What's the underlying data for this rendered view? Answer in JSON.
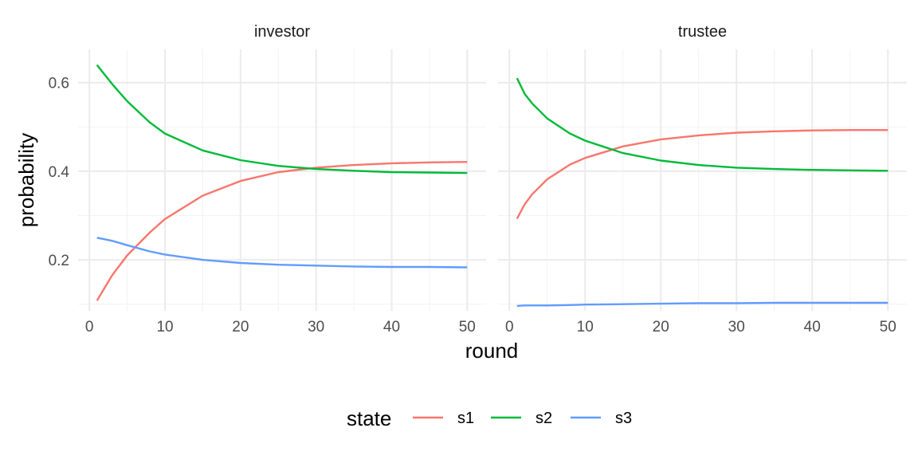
{
  "chart_data": {
    "type": "line",
    "xlabel": "round",
    "ylabel": "probability",
    "xlim": [
      1,
      50
    ],
    "ylim": [
      0.09,
      0.66
    ],
    "x_ticks": [
      0,
      10,
      20,
      30,
      40,
      50
    ],
    "y_ticks": [
      0.2,
      0.4,
      0.6
    ],
    "grid": true,
    "legend": {
      "title": "state",
      "position": "bottom",
      "entries": [
        "s1",
        "s2",
        "s3"
      ]
    },
    "colors": {
      "s1": "#F8766D",
      "s2": "#00BA38",
      "s3": "#619CFF"
    },
    "panels": [
      {
        "title": "investor",
        "series": [
          {
            "name": "s1",
            "x": [
              1,
              3,
              5,
              8,
              10,
              15,
              20,
              25,
              30,
              35,
              40,
              45,
              50
            ],
            "values": [
              0.108,
              0.165,
              0.21,
              0.262,
              0.292,
              0.345,
              0.378,
              0.398,
              0.408,
              0.414,
              0.418,
              0.42,
              0.421
            ]
          },
          {
            "name": "s2",
            "x": [
              1,
              3,
              5,
              8,
              10,
              15,
              20,
              25,
              30,
              35,
              40,
              45,
              50
            ],
            "values": [
              0.64,
              0.597,
              0.558,
              0.51,
              0.485,
              0.447,
              0.425,
              0.412,
              0.405,
              0.401,
              0.398,
              0.397,
              0.396
            ]
          },
          {
            "name": "s3",
            "x": [
              1,
              3,
              5,
              8,
              10,
              15,
              20,
              25,
              30,
              35,
              40,
              45,
              50
            ],
            "values": [
              0.25,
              0.243,
              0.233,
              0.219,
              0.212,
              0.2,
              0.193,
              0.189,
              0.187,
              0.185,
              0.184,
              0.184,
              0.183
            ]
          }
        ]
      },
      {
        "title": "trustee",
        "series": [
          {
            "name": "s1",
            "x": [
              1,
              2,
              3,
              5,
              8,
              10,
              15,
              20,
              25,
              30,
              35,
              40,
              45,
              50
            ],
            "values": [
              0.293,
              0.325,
              0.348,
              0.382,
              0.415,
              0.43,
              0.456,
              0.472,
              0.481,
              0.487,
              0.49,
              0.492,
              0.493,
              0.493
            ]
          },
          {
            "name": "s2",
            "x": [
              1,
              2,
              3,
              5,
              8,
              10,
              15,
              20,
              25,
              30,
              35,
              40,
              45,
              50
            ],
            "values": [
              0.61,
              0.575,
              0.553,
              0.519,
              0.485,
              0.469,
              0.441,
              0.424,
              0.414,
              0.408,
              0.405,
              0.403,
              0.402,
              0.401
            ]
          },
          {
            "name": "s3",
            "x": [
              1,
              2,
              3,
              5,
              8,
              10,
              15,
              20,
              25,
              30,
              35,
              40,
              45,
              50
            ],
            "values": [
              0.096,
              0.097,
              0.097,
              0.097,
              0.098,
              0.099,
              0.1,
              0.101,
              0.102,
              0.102,
              0.103,
              0.103,
              0.103,
              0.103
            ]
          }
        ]
      }
    ]
  }
}
